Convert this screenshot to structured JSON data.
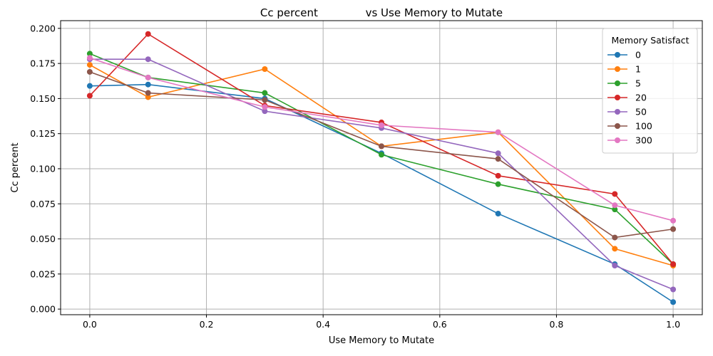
{
  "chart_data": {
    "type": "line",
    "title": "Cc percent              vs Use Memory to Mutate",
    "xlabel": "Use Memory to Mutate",
    "ylabel": "Cc percent",
    "xlim": [
      -0.05,
      1.05
    ],
    "ylim": [
      -0.004,
      0.2055
    ],
    "x_ticks": [
      "0.0",
      "0.2",
      "0.4",
      "0.6",
      "0.8",
      "1.0"
    ],
    "y_ticks": [
      "0.000",
      "0.025",
      "0.050",
      "0.075",
      "0.100",
      "0.125",
      "0.150",
      "0.175",
      "0.200"
    ],
    "grid": true,
    "legend": {
      "title": "Memory Satisfact",
      "placement": "top-right"
    },
    "x": [
      0.0,
      0.1,
      0.3,
      0.5,
      0.7,
      0.9,
      1.0
    ],
    "series": [
      {
        "name": "0",
        "color": "#1f77b4",
        "values": [
          0.159,
          0.16,
          0.15,
          0.111,
          0.068,
          0.032,
          0.005
        ]
      },
      {
        "name": "1",
        "color": "#ff7f0e",
        "values": [
          0.174,
          0.151,
          0.171,
          0.116,
          0.126,
          0.043,
          0.031
        ]
      },
      {
        "name": "5",
        "color": "#2ca02c",
        "values": [
          0.182,
          0.165,
          0.154,
          0.11,
          0.089,
          0.071,
          0.032
        ]
      },
      {
        "name": "20",
        "color": "#d62728",
        "values": [
          0.152,
          0.196,
          0.145,
          0.133,
          0.095,
          0.082,
          0.032
        ]
      },
      {
        "name": "50",
        "color": "#9467bd",
        "values": [
          0.178,
          0.178,
          0.141,
          0.129,
          0.111,
          0.031,
          0.014
        ]
      },
      {
        "name": "100",
        "color": "#8c564b",
        "values": [
          0.169,
          0.154,
          0.149,
          0.116,
          0.107,
          0.051,
          0.057
        ]
      },
      {
        "name": "300",
        "color": "#e377c2",
        "values": [
          0.179,
          0.165,
          0.144,
          0.131,
          0.126,
          0.074,
          0.063
        ]
      }
    ]
  }
}
